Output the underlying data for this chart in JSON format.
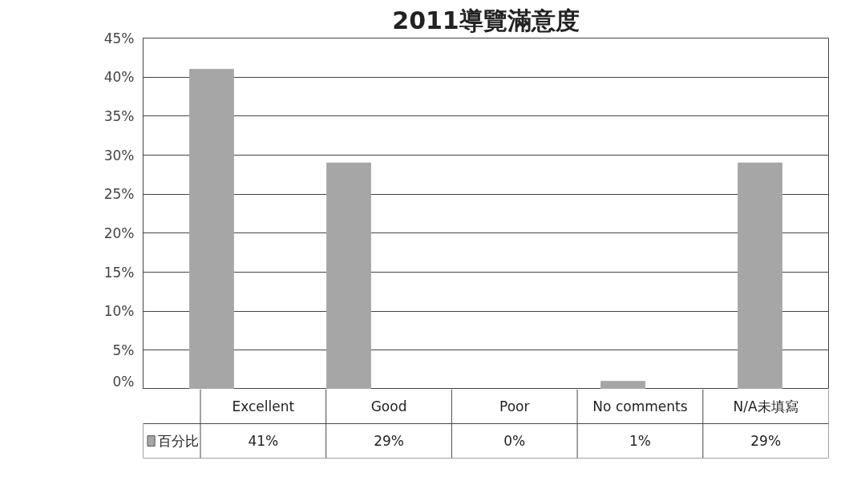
{
  "chart_data": {
    "type": "bar",
    "title": "2011導覽滿意度",
    "categories": [
      "Excellent",
      "Good",
      "Poor",
      "No comments",
      "N/A未填寫"
    ],
    "series": [
      {
        "name": "百分比",
        "color": "#a6a6a6",
        "values": [
          41,
          29,
          0,
          1,
          29
        ]
      }
    ],
    "ylim": [
      0,
      45
    ],
    "yticks": [
      {
        "value": 0,
        "label": "0%"
      },
      {
        "value": 5,
        "label": "5%"
      },
      {
        "value": 10,
        "label": "10%"
      },
      {
        "value": 15,
        "label": "15%"
      },
      {
        "value": 20,
        "label": "20%"
      },
      {
        "value": 25,
        "label": "25%"
      },
      {
        "value": 30,
        "label": "30%"
      },
      {
        "value": 35,
        "label": "35%"
      },
      {
        "value": 40,
        "label": "40%"
      },
      {
        "value": 45,
        "label": "45%"
      }
    ],
    "value_labels": [
      "41%",
      "29%",
      "0%",
      "1%",
      "29%"
    ],
    "grid": "y",
    "legend": "bottom left"
  }
}
